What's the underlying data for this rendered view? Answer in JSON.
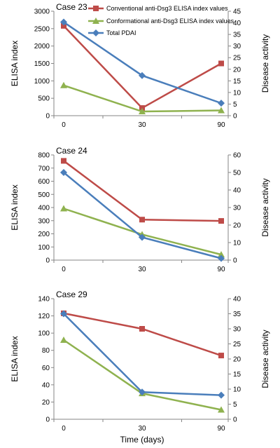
{
  "colors": {
    "conventional": "#BE4B48",
    "conformational": "#8FB24F",
    "pdai": "#4A7EBB"
  },
  "legend": [
    "Conventional anti-Dsg3 ELISA index values",
    "Conformational anti-Dsg3 ELISA index values",
    "Total PDAI"
  ],
  "xlabel": "Time (days)",
  "chart_data": [
    {
      "type": "line",
      "title": "Case 23",
      "categories": [
        "0",
        "30",
        "90"
      ],
      "ylabel": "ELISA index",
      "y2label": "Disease activity",
      "ylim": [
        0,
        3000
      ],
      "yticks": [
        0,
        500,
        1000,
        1500,
        2000,
        2500,
        3000
      ],
      "y2lim": [
        0,
        45
      ],
      "y2ticks": [
        0,
        5,
        10,
        15,
        20,
        25,
        30,
        35,
        40,
        45
      ],
      "series": [
        {
          "name": "Conventional anti-Dsg3 ELISA index values",
          "axis": "left",
          "marker": "square",
          "values": [
            2580,
            220,
            1500
          ]
        },
        {
          "name": "Conformational anti-Dsg3 ELISA index values",
          "axis": "left",
          "marker": "triangle",
          "values": [
            870,
            120,
            150
          ]
        },
        {
          "name": "Total PDAI",
          "axis": "right",
          "marker": "diamond",
          "values": [
            40.3,
            17.3,
            5.4
          ]
        }
      ]
    },
    {
      "type": "line",
      "title": "Case 24",
      "categories": [
        "0",
        "30",
        "90"
      ],
      "ylabel": "ELISA index",
      "y2label": "Disease activity",
      "ylim": [
        0,
        800
      ],
      "yticks": [
        0,
        100,
        200,
        300,
        400,
        500,
        600,
        700,
        800
      ],
      "y2lim": [
        0,
        60
      ],
      "y2ticks": [
        0,
        10,
        20,
        30,
        40,
        50,
        60
      ],
      "series": [
        {
          "name": "Conventional anti-Dsg3 ELISA index values",
          "axis": "left",
          "marker": "square",
          "values": [
            755,
            308,
            298
          ]
        },
        {
          "name": "Conformational anti-Dsg3 ELISA index values",
          "axis": "left",
          "marker": "triangle",
          "values": [
            392,
            195,
            42
          ]
        },
        {
          "name": "Total PDAI",
          "axis": "right",
          "marker": "diamond",
          "values": [
            50,
            13,
            1
          ]
        }
      ]
    },
    {
      "type": "line",
      "title": "Case 29",
      "categories": [
        "0",
        "30",
        "90"
      ],
      "ylabel": "ELISA index",
      "y2label": "Disease activity",
      "ylim": [
        0,
        140
      ],
      "yticks": [
        0,
        20,
        40,
        60,
        80,
        100,
        120,
        140
      ],
      "y2lim": [
        0,
        40
      ],
      "y2ticks": [
        0,
        5,
        10,
        15,
        20,
        25,
        30,
        35,
        40
      ],
      "series": [
        {
          "name": "Conventional anti-Dsg3 ELISA index values",
          "axis": "left",
          "marker": "square",
          "values": [
            123,
            105,
            74
          ]
        },
        {
          "name": "Conformational anti-Dsg3 ELISA index values",
          "axis": "left",
          "marker": "triangle",
          "values": [
            92,
            30,
            11
          ]
        },
        {
          "name": "Total PDAI",
          "axis": "right",
          "marker": "diamond",
          "values": [
            35,
            9,
            8
          ]
        }
      ]
    }
  ]
}
